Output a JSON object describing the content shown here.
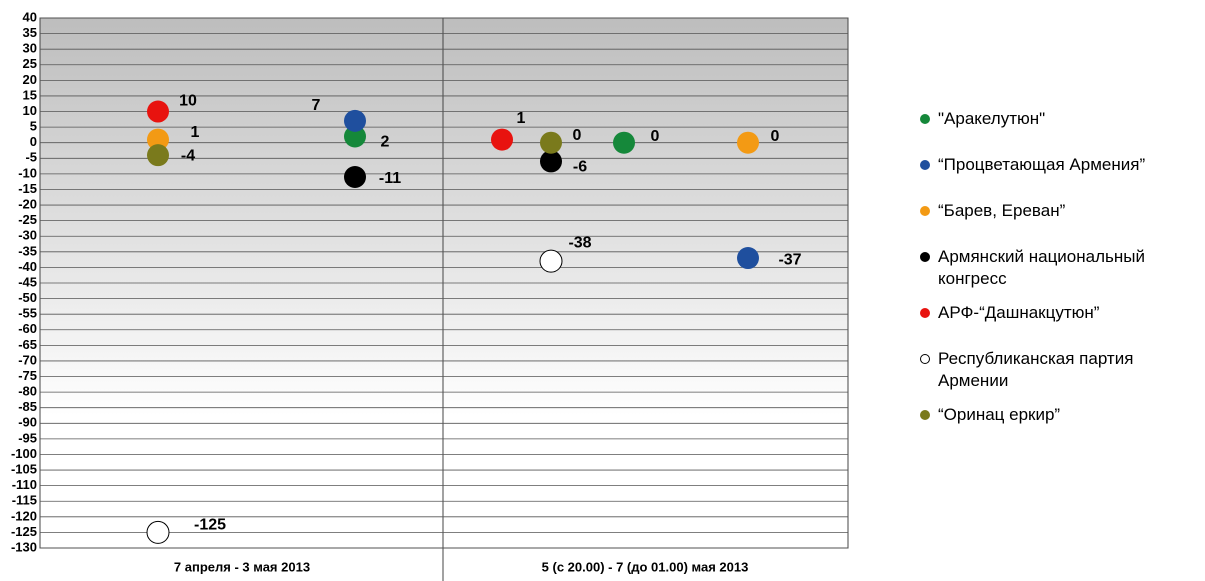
{
  "chart_data": {
    "type": "dot",
    "categories": [
      "7 апреля - 3 мая 2013",
      "5 (с 20.00) - 7 (до 01.00) мая 2013"
    ],
    "ylim": [
      -130,
      40
    ],
    "yticks": [
      40,
      35,
      30,
      25,
      20,
      15,
      10,
      5,
      0,
      -5,
      -10,
      -15,
      -20,
      -25,
      -30,
      -35,
      -40,
      -45,
      -50,
      -55,
      -60,
      -65,
      -70,
      -75,
      -80,
      -85,
      -90,
      -95,
      -100,
      -105,
      -110,
      -115,
      -120,
      -125,
      -130
    ],
    "grid": true,
    "legend": "right",
    "series": [
      {
        "name": "\"Аракелутюн\"",
        "color": "#15883a",
        "values": [
          2,
          0
        ]
      },
      {
        "name": "“Процветающая Армения”",
        "color": "#1f4f9e",
        "values": [
          7,
          -37
        ]
      },
      {
        "name": "“Барев, Ереван”",
        "color": "#f39a14",
        "values": [
          1,
          0
        ]
      },
      {
        "name": "Армянский национальный конгресс",
        "color": "#000000",
        "values": [
          -11,
          -6
        ]
      },
      {
        "name": "АРФ-“Дашнакцутюн”",
        "color": "#e8130f",
        "values": [
          10,
          1
        ]
      },
      {
        "name": "Республиканская партия Армении",
        "color": "#ffffff",
        "values": [
          -125,
          -38
        ]
      },
      {
        "name": "“Оринац еркир”",
        "color": "#7a7a1c",
        "values": [
          -4,
          0
        ]
      }
    ]
  }
}
